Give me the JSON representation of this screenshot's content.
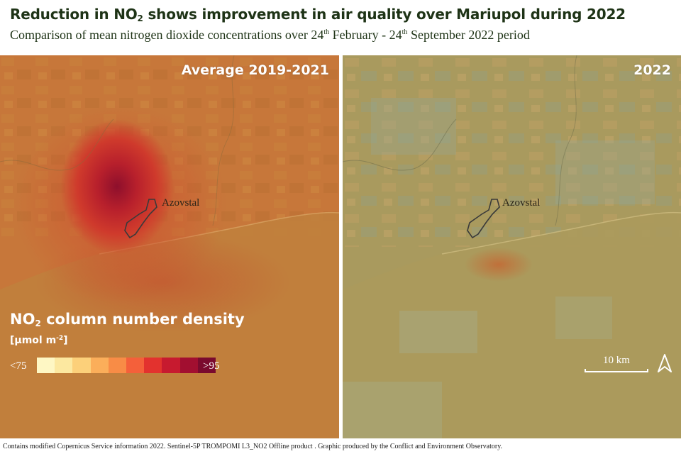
{
  "title": {
    "prefix": "Reduction in NO",
    "subscript": "2",
    "suffix": " shows improvement in air quality over Mariupol during 2022"
  },
  "subtitle": {
    "part1": "Comparison of mean nitrogen dioxide concentrations over 24",
    "sup1": "th",
    "part2": " February - 24",
    "sup2": "th",
    "part3": " September 2022 period"
  },
  "panels": {
    "left": {
      "label": "Average 2019-2021",
      "place": "Azovstal"
    },
    "right": {
      "label": "2022",
      "place": "Azovstal"
    }
  },
  "legend": {
    "title_prefix": "NO",
    "title_subscript": "2",
    "title_suffix": " column number density",
    "unit_prefix": "[μmol m",
    "unit_sup": "-2",
    "unit_suffix": "]",
    "min_label": "<75",
    "max_label": ">95",
    "colors": [
      "#fef7c4",
      "#fce8a0",
      "#fcd07a",
      "#fbae5a",
      "#f88c46",
      "#f4603a",
      "#e3322e",
      "#c71a2f",
      "#a20f30",
      "#7a0a2e"
    ]
  },
  "scale_bar": {
    "label": "10 km"
  },
  "north_arrow": {
    "icon": "north-arrow-icon"
  },
  "credit": "Contains modified Copernicus Service information 2022. Sentinel-5P TROMPOMI L3_NO2 Offline product . Graphic produced by the Conflict and Environment Observatory."
}
